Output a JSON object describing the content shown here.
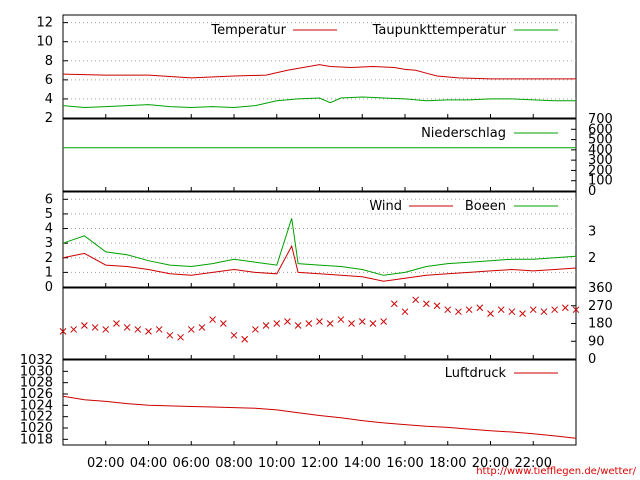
{
  "source_link": "http://www.tiefflegen.de/wetter/",
  "chart_data": [
    {
      "type": "line",
      "panel": "temperature",
      "ylim": [
        2,
        12.8
      ],
      "yticks": [
        "2",
        "4",
        "6",
        "8",
        "10",
        "12"
      ],
      "grid": true,
      "legend_placement": "top-right",
      "series": [
        {
          "name": "Temperatur",
          "color": "#cc0000",
          "x": [
            0,
            2,
            4,
            6,
            8,
            9.5,
            10.5,
            11.5,
            12,
            12.5,
            13.5,
            14.5,
            15.5,
            16,
            16.5,
            17,
            17.5,
            18.5,
            20,
            22,
            24
          ],
          "y": [
            6.6,
            6.5,
            6.5,
            6.2,
            6.4,
            6.5,
            7.0,
            7.4,
            7.6,
            7.4,
            7.3,
            7.4,
            7.3,
            7.1,
            7.0,
            6.7,
            6.4,
            6.2,
            6.1,
            6.1,
            6.1
          ]
        },
        {
          "name": "Taupunkttemperatur",
          "color": "#00a000",
          "x": [
            0,
            1,
            2,
            3,
            4,
            5,
            6,
            7,
            8,
            9,
            10,
            11,
            12,
            12.5,
            13,
            14,
            15,
            16,
            17,
            18,
            19,
            20,
            21,
            22,
            23,
            24
          ],
          "y": [
            3.3,
            3.1,
            3.2,
            3.3,
            3.4,
            3.2,
            3.1,
            3.2,
            3.1,
            3.3,
            3.8,
            4.0,
            4.1,
            3.6,
            4.1,
            4.2,
            4.1,
            4.0,
            3.8,
            3.9,
            3.9,
            4.0,
            4.0,
            3.9,
            3.8,
            3.8
          ]
        }
      ]
    },
    {
      "type": "line",
      "panel": "precipitation",
      "ylim": [
        0,
        700
      ],
      "yticks": [
        "0",
        "100",
        "200",
        "300",
        "400",
        "500",
        "600",
        "700"
      ],
      "legend_placement": "top-right",
      "series": [
        {
          "name": "Niederschlag",
          "color": "#00a000",
          "x": [
            0,
            24
          ],
          "y": [
            420,
            420
          ]
        }
      ]
    },
    {
      "type": "line",
      "panel": "wind",
      "ylim": [
        0,
        6.5
      ],
      "yticks": [
        "0",
        "1",
        "2",
        "3",
        "4",
        "5",
        "6"
      ],
      "right_ticks": [
        {
          "label": "2",
          "y": 2
        },
        {
          "label": "3",
          "y": 3.8
        }
      ],
      "grid": true,
      "legend_placement": "top-right",
      "series": [
        {
          "name": "Wind",
          "color": "#cc0000",
          "x": [
            0,
            1,
            2,
            3,
            4,
            5,
            6,
            7,
            8,
            9,
            10,
            10.7,
            11,
            12,
            13,
            14,
            15,
            16,
            17,
            18,
            19,
            20,
            21,
            22,
            23,
            24
          ],
          "y": [
            2.0,
            2.3,
            1.5,
            1.4,
            1.2,
            0.9,
            0.8,
            1.0,
            1.2,
            1.0,
            0.9,
            2.8,
            1.0,
            0.9,
            0.8,
            0.7,
            0.4,
            0.6,
            0.8,
            0.9,
            1.0,
            1.1,
            1.2,
            1.1,
            1.2,
            1.3
          ]
        },
        {
          "name": "Boeen",
          "color": "#00a000",
          "x": [
            0,
            1,
            2,
            3,
            4,
            5,
            6,
            7,
            8,
            9,
            10,
            10.7,
            11,
            12,
            13,
            14,
            15,
            16,
            17,
            18,
            19,
            20,
            21,
            22,
            23,
            24
          ],
          "y": [
            3.0,
            3.5,
            2.4,
            2.2,
            1.8,
            1.5,
            1.4,
            1.6,
            1.9,
            1.7,
            1.5,
            4.7,
            1.6,
            1.5,
            1.4,
            1.2,
            0.8,
            1.0,
            1.4,
            1.6,
            1.7,
            1.8,
            1.9,
            1.9,
            2.0,
            2.1
          ]
        }
      ]
    },
    {
      "type": "scatter",
      "panel": "wind-direction",
      "ylim": [
        0,
        360
      ],
      "yticks": [
        "0",
        "90",
        "180",
        "270",
        "360"
      ],
      "series": [
        {
          "color": "#cc0000",
          "x": [
            0,
            0.5,
            1,
            1.5,
            2,
            2.5,
            3,
            3.5,
            4,
            4.5,
            5,
            5.5,
            6,
            6.5,
            7,
            7.5,
            8,
            8.5,
            9,
            9.5,
            10,
            10.5,
            11,
            11.5,
            12,
            12.5,
            13,
            13.5,
            14,
            14.5,
            15,
            15.5,
            16,
            16.5,
            17,
            17.5,
            18,
            18.5,
            19,
            19.5,
            20,
            20.5,
            21,
            21.5,
            22,
            22.5,
            23,
            23.5,
            24
          ],
          "y": [
            140,
            150,
            170,
            160,
            150,
            180,
            160,
            150,
            140,
            150,
            120,
            110,
            150,
            160,
            200,
            180,
            120,
            100,
            150,
            170,
            180,
            190,
            170,
            180,
            190,
            180,
            200,
            180,
            190,
            180,
            190,
            280,
            240,
            300,
            280,
            270,
            250,
            240,
            250,
            260,
            230,
            250,
            240,
            230,
            250,
            240,
            250,
            260,
            250
          ]
        }
      ]
    },
    {
      "type": "line",
      "panel": "pressure",
      "ylim": [
        1017,
        1032
      ],
      "yticks": [
        "1018",
        "1020",
        "1022",
        "1024",
        "1026",
        "1028",
        "1030",
        "1032"
      ],
      "xticks": [
        "02:00",
        "04:00",
        "06:00",
        "08:00",
        "10:00",
        "12:00",
        "14:00",
        "16:00",
        "18:00",
        "20:00",
        "22:00"
      ],
      "legend_placement": "top-right",
      "series": [
        {
          "name": "Luftdruck",
          "color": "#cc0000",
          "x": [
            0,
            1,
            2,
            3,
            4,
            5,
            6,
            7,
            8,
            9,
            10,
            11,
            12,
            13,
            14,
            15,
            16,
            17,
            18,
            19,
            20,
            21,
            22,
            23,
            24
          ],
          "y": [
            1025.6,
            1025.0,
            1024.7,
            1024.3,
            1024.0,
            1023.9,
            1023.8,
            1023.7,
            1023.6,
            1023.5,
            1023.2,
            1022.7,
            1022.2,
            1021.8,
            1021.3,
            1020.9,
            1020.6,
            1020.3,
            1020.1,
            1019.8,
            1019.5,
            1019.3,
            1019.0,
            1018.6,
            1018.2
          ]
        }
      ]
    }
  ]
}
